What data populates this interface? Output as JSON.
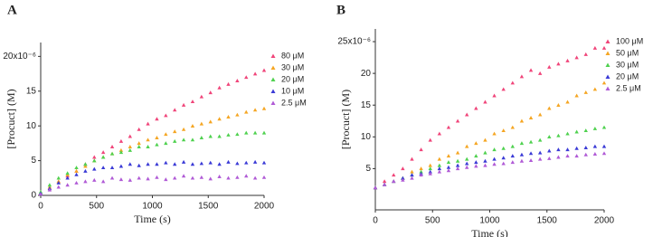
{
  "chart_data": [
    {
      "type": "scatter",
      "title": "A",
      "x_label": "Time (s)",
      "y_label": "[Procuct] (M)",
      "x": [
        0,
        80,
        160,
        240,
        320,
        400,
        480,
        560,
        640,
        720,
        800,
        880,
        960,
        1040,
        1120,
        1200,
        1280,
        1360,
        1440,
        1520,
        1600,
        1680,
        1760,
        1840,
        1920,
        2000
      ],
      "xlim": [
        0,
        2000
      ],
      "xticks": [
        0,
        500,
        1000,
        1500,
        2000
      ],
      "ylim": [
        0,
        22
      ],
      "yticks": [
        0,
        5,
        10,
        15,
        {
          "value": 20,
          "label": "20x10⁻⁶"
        }
      ],
      "series": [
        {
          "name": "80  μM",
          "color": "#f0457a",
          "values": [
            0.3,
            1,
            2,
            2.8,
            3.5,
            4.5,
            5.5,
            6.2,
            7,
            7.8,
            8.5,
            9.5,
            10.3,
            11,
            11.5,
            12.3,
            13,
            13.5,
            14.2,
            14.8,
            15.5,
            16,
            16.5,
            17,
            17.5,
            18
          ]
        },
        {
          "name": "30  μM",
          "color": "#f5a623",
          "values": [
            0.3,
            1.2,
            2,
            3,
            3.5,
            4.2,
            5,
            5.5,
            6,
            6.5,
            7,
            7.5,
            8,
            8.3,
            8.8,
            9.2,
            9.5,
            10,
            10.3,
            10.6,
            11,
            11.3,
            11.6,
            12,
            12.3,
            12.5
          ]
        },
        {
          "name": "20  μM",
          "color": "#4fd14f",
          "values": [
            0.5,
            1.5,
            2.5,
            3.2,
            4,
            4.5,
            5,
            5.5,
            6,
            6.2,
            6.5,
            7,
            7,
            7.3,
            7.5,
            7.8,
            8,
            8,
            8.3,
            8.5,
            8.5,
            8.7,
            8.8,
            9,
            9,
            9
          ]
        },
        {
          "name": "10  μM",
          "color": "#3a3ad6",
          "values": [
            0.3,
            1,
            1.8,
            2.5,
            3,
            3.5,
            3.8,
            4,
            4,
            4.2,
            4.5,
            4.3,
            4.5,
            4.5,
            4.7,
            4.5,
            4.8,
            4.5,
            4.6,
            4.7,
            4.5,
            4.8,
            4.6,
            4.7,
            4.8,
            4.7
          ]
        },
        {
          "name": "2.5  μM",
          "color": "#b05ad6",
          "values": [
            0.2,
            0.8,
            1.2,
            1.5,
            1.8,
            2,
            2.2,
            2,
            2.5,
            2.3,
            2.2,
            2.5,
            2.4,
            2.6,
            2.3,
            2.5,
            2.8,
            2.5,
            2.6,
            2.4,
            2.7,
            2.5,
            2.6,
            2.8,
            2.5,
            2.6
          ]
        }
      ]
    },
    {
      "type": "scatter",
      "title": "B",
      "x_label": "Time (s)",
      "y_label": "[Procuct] (M)",
      "x": [
        0,
        80,
        160,
        240,
        320,
        400,
        480,
        560,
        640,
        720,
        800,
        880,
        960,
        1040,
        1120,
        1200,
        1280,
        1360,
        1440,
        1520,
        1600,
        1680,
        1760,
        1840,
        1920,
        2000
      ],
      "xlim": [
        0,
        2000
      ],
      "xticks": [
        0,
        500,
        1000,
        1500,
        2000
      ],
      "ylim": [
        -1.5,
        27
      ],
      "yticks": [
        5,
        10,
        15,
        20,
        {
          "value": 25,
          "label": "25x10⁻⁶"
        }
      ],
      "series": [
        {
          "name": "100 μM",
          "color": "#f0457a",
          "values": [
            2,
            3,
            4,
            5,
            6.5,
            8,
            9.5,
            10.5,
            11.5,
            12.5,
            13.5,
            14.5,
            15.5,
            16.5,
            17.5,
            18.5,
            19.5,
            20.5,
            20,
            21,
            21.5,
            22,
            22.5,
            23,
            24,
            24
          ]
        },
        {
          "name": "50  μM",
          "color": "#f5a623",
          "values": [
            2,
            2.5,
            3,
            3.5,
            4.5,
            5,
            5.5,
            6.5,
            7,
            7.5,
            8.5,
            9,
            9.5,
            10.5,
            11,
            11.5,
            12.5,
            13,
            13.5,
            14.5,
            15,
            15.5,
            16.5,
            17,
            17.5,
            18.5
          ]
        },
        {
          "name": "30  μM",
          "color": "#4fd14f",
          "values": [
            2,
            2.5,
            3,
            3.5,
            4,
            4.5,
            5,
            5.5,
            6,
            6.2,
            6.5,
            7,
            7.5,
            8,
            8.2,
            8.5,
            9,
            9.2,
            9.5,
            10,
            10.2,
            10.5,
            10.8,
            11,
            11.3,
            11.5
          ]
        },
        {
          "name": "20  μM",
          "color": "#3a3ad6",
          "values": [
            2,
            2.5,
            3,
            3.5,
            4,
            4.2,
            4.5,
            5,
            5.2,
            5.5,
            5.8,
            6,
            6.2,
            6.5,
            6.7,
            7,
            7.2,
            7.4,
            7.5,
            7.8,
            8,
            8,
            8.2,
            8.3,
            8.5,
            8.5
          ]
        },
        {
          "name": "2.5  μM",
          "color": "#b05ad6",
          "values": [
            2,
            2.5,
            3,
            3.2,
            3.5,
            4,
            4.2,
            4.5,
            4.7,
            5,
            5.2,
            5.4,
            5.5,
            5.7,
            5.8,
            6,
            6.2,
            6.3,
            6.5,
            6.6,
            6.8,
            7,
            7,
            7.2,
            7.3,
            7.4
          ]
        }
      ]
    }
  ]
}
